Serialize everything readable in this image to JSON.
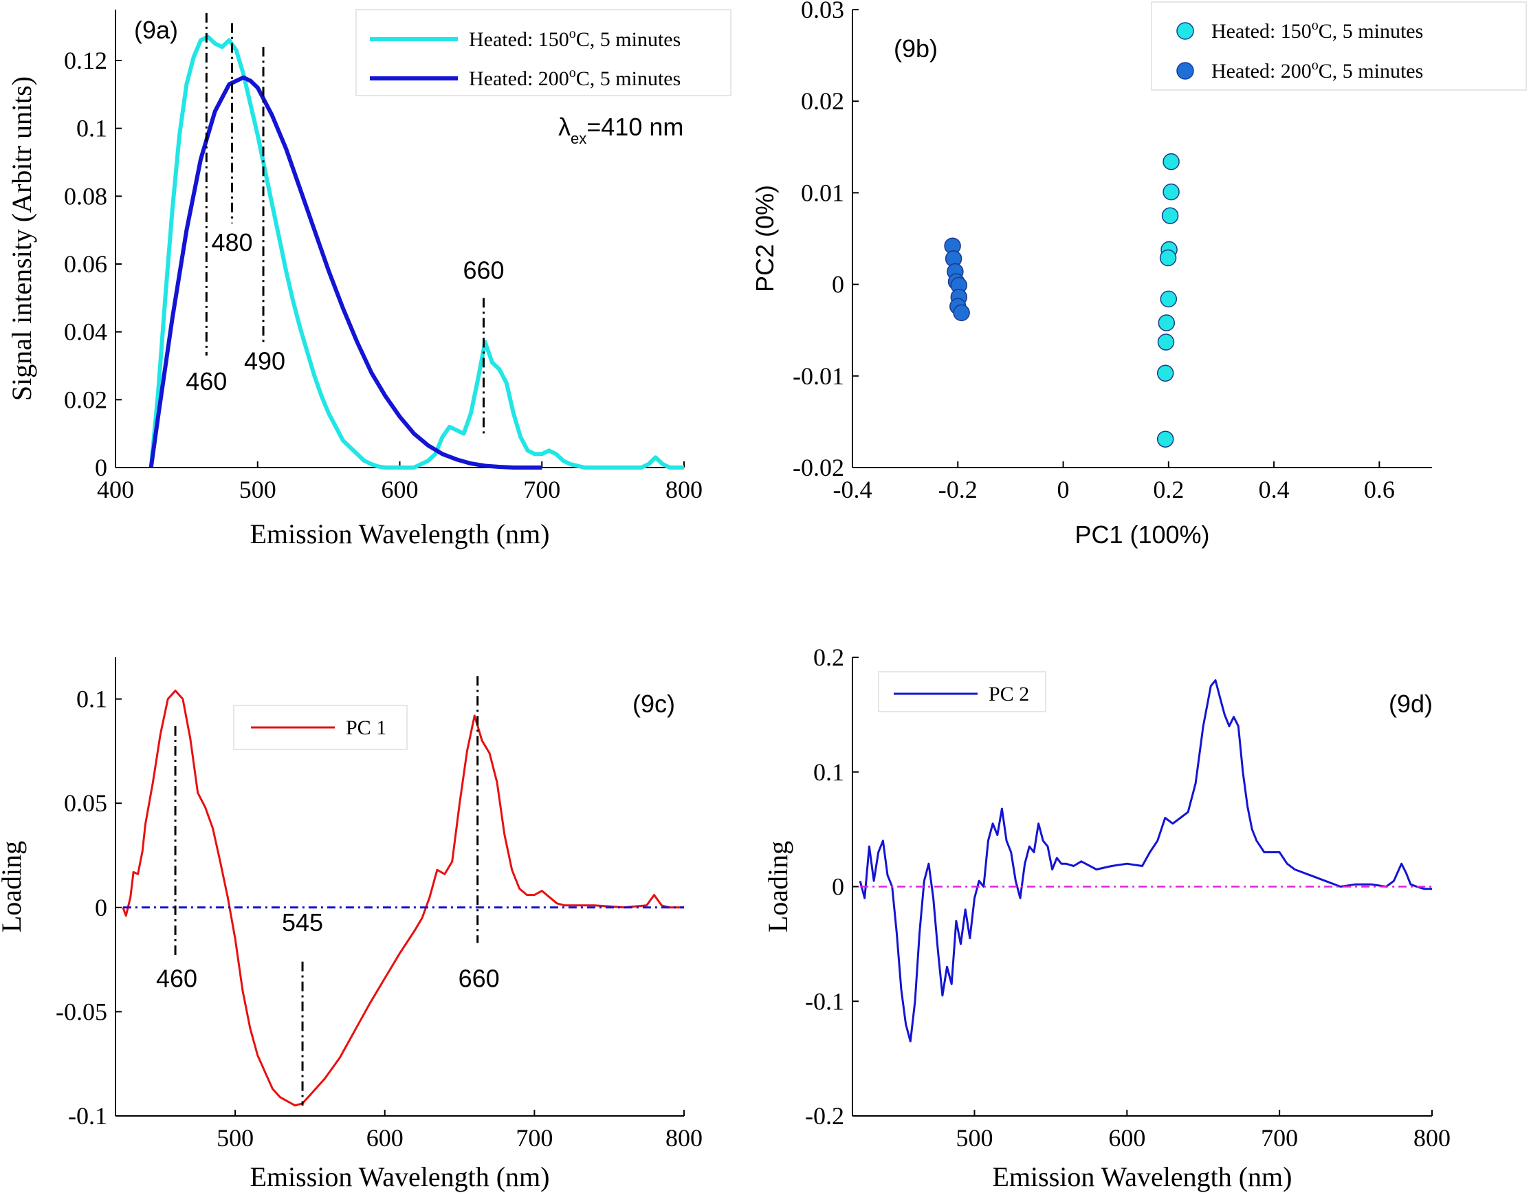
{
  "chart_data": [
    {
      "id": "9a",
      "type": "line",
      "panel_label": "(9a)",
      "xlabel": "Emission Wavelength (nm)",
      "ylabel": "Signal intensity (Arbitr units)",
      "xlim": [
        400,
        800
      ],
      "ylim": [
        0,
        0.135
      ],
      "xticks": [
        400,
        500,
        600,
        700,
        800
      ],
      "xtick_labels": [
        "400",
        "500",
        "600",
        "700",
        "800"
      ],
      "yticks": [
        0,
        0.02,
        0.04,
        0.06,
        0.08,
        0.1,
        0.12
      ],
      "ytick_labels": [
        "0",
        "0.02",
        "0.04",
        "0.06",
        "0.08",
        "0.1",
        "0.12"
      ],
      "legend_position": "top-right",
      "excitation_note": {
        "prefix": "λ",
        "subscript": "ex",
        "suffix": "=410 nm"
      },
      "series": [
        {
          "name": "Heated: 150°C, 5 minutes",
          "legend_parts": [
            "Heated: 150",
            "o",
            "C, 5 minutes"
          ],
          "color": "#22e5e5",
          "x": [
            425,
            430,
            435,
            440,
            445,
            450,
            455,
            460,
            465,
            470,
            475,
            480,
            485,
            490,
            495,
            500,
            505,
            510,
            515,
            520,
            525,
            530,
            535,
            540,
            545,
            550,
            555,
            560,
            565,
            570,
            575,
            580,
            585,
            590,
            595,
            600,
            605,
            610,
            615,
            620,
            625,
            630,
            635,
            640,
            645,
            650,
            655,
            660,
            665,
            670,
            675,
            680,
            685,
            690,
            695,
            700,
            705,
            710,
            715,
            720,
            730,
            740,
            750,
            760,
            770,
            775,
            780,
            785,
            790,
            800
          ],
          "y": [
            0,
            0.022,
            0.05,
            0.076,
            0.098,
            0.113,
            0.121,
            0.126,
            0.127,
            0.125,
            0.124,
            0.126,
            0.123,
            0.116,
            0.107,
            0.098,
            0.088,
            0.078,
            0.068,
            0.058,
            0.049,
            0.041,
            0.034,
            0.027,
            0.021,
            0.016,
            0.012,
            0.008,
            0.006,
            0.004,
            0.002,
            0.001,
            0.0003,
            0,
            0,
            0,
            0,
            0,
            0.001,
            0.002,
            0.004,
            0.009,
            0.012,
            0.011,
            0.01,
            0.016,
            0.026,
            0.037,
            0.031,
            0.029,
            0.025,
            0.016,
            0.009,
            0.005,
            0.004,
            0.004,
            0.005,
            0.004,
            0.002,
            0.001,
            0,
            0,
            0,
            0,
            0,
            0.001,
            0.003,
            0.001,
            0,
            0
          ]
        },
        {
          "name": "Heated: 200°C, 5 minutes",
          "legend_parts": [
            "Heated: 200",
            "o",
            "C, 5 minutes"
          ],
          "color": "#1414d4",
          "x": [
            425,
            430,
            440,
            450,
            460,
            470,
            480,
            490,
            495,
            500,
            510,
            520,
            530,
            540,
            550,
            560,
            570,
            580,
            590,
            600,
            610,
            620,
            630,
            640,
            650,
            660,
            670,
            680,
            700
          ],
          "y": [
            0,
            0.015,
            0.044,
            0.07,
            0.091,
            0.105,
            0.113,
            0.115,
            0.114,
            0.112,
            0.104,
            0.094,
            0.082,
            0.07,
            0.058,
            0.047,
            0.037,
            0.028,
            0.021,
            0.015,
            0.01,
            0.0065,
            0.004,
            0.0024,
            0.0012,
            0.0005,
            0.0002,
            0,
            0
          ]
        }
      ],
      "annotations": [
        {
          "label": "460",
          "x": 464,
          "y_top": 0.134,
          "y_bottom": 0.033
        },
        {
          "label": "480",
          "x": 482,
          "y_top": 0.131,
          "y_bottom": 0.072
        },
        {
          "label": "490",
          "x": 504,
          "y_top": 0.124,
          "y_bottom": 0.037
        },
        {
          "label": "660",
          "x": 659,
          "y_top": 0.05,
          "y_bottom": 0.009
        }
      ]
    },
    {
      "id": "9b",
      "type": "scatter",
      "panel_label": "(9b)",
      "xlabel": "PC1 (100%)",
      "ylabel": "PC2 (0%)",
      "xlim": [
        -0.4,
        0.7
      ],
      "ylim": [
        -0.02,
        0.03
      ],
      "xticks": [
        -0.4,
        -0.2,
        0,
        0.2,
        0.4,
        0.6
      ],
      "xtick_labels": [
        "-0.4",
        "-0.2",
        "0",
        "0.2",
        "0.4",
        "0.6"
      ],
      "yticks": [
        -0.02,
        -0.01,
        0,
        0.01,
        0.02,
        0.03
      ],
      "ytick_labels": [
        "-0.02",
        "-0.01",
        "0",
        "0.01",
        "0.02",
        "0.03"
      ],
      "legend_position": "top-right",
      "series": [
        {
          "name": "Heated: 150°C, 5 minutes",
          "legend_parts": [
            "Heated: 150",
            "o",
            "C, 5 minutes"
          ],
          "color": "#22e5e5",
          "points": [
            [
              0.205,
              0.0134
            ],
            [
              0.205,
              0.0101
            ],
            [
              0.203,
              0.0075
            ],
            [
              0.201,
              0.0038
            ],
            [
              0.199,
              0.0029
            ],
            [
              0.2,
              -0.0016
            ],
            [
              0.196,
              -0.0042
            ],
            [
              0.195,
              -0.0063
            ],
            [
              0.194,
              -0.0097
            ],
            [
              0.194,
              -0.0169
            ]
          ]
        },
        {
          "name": "Heated: 200°C, 5 minutes",
          "legend_parts": [
            "Heated: 200",
            "o",
            "C, 5 minutes"
          ],
          "color": "#1f6fd6",
          "points": [
            [
              -0.21,
              0.0042
            ],
            [
              -0.208,
              0.0028
            ],
            [
              -0.205,
              0.0014
            ],
            [
              -0.203,
              0.0003
            ],
            [
              -0.198,
              -0.0001
            ],
            [
              -0.198,
              -0.0014
            ],
            [
              -0.2,
              -0.0024
            ],
            [
              -0.193,
              -0.0031
            ]
          ]
        }
      ]
    },
    {
      "id": "9c",
      "type": "line",
      "panel_label": "(9c)",
      "xlabel": "Emission Wavelength (nm)",
      "ylabel": "Loading",
      "xlim": [
        420,
        800
      ],
      "ylim": [
        -0.1,
        0.12
      ],
      "xticks": [
        500,
        600,
        700,
        800
      ],
      "xtick_labels": [
        "500",
        "600",
        "700",
        "800"
      ],
      "yticks": [
        -0.1,
        -0.05,
        0,
        0.05,
        0.1
      ],
      "ytick_labels": [
        "-0.1",
        "-0.05",
        "0",
        "0.05",
        "0.1"
      ],
      "legend_position": "top-center",
      "series": [
        {
          "name": "PC 1",
          "color": "#e81010",
          "x": [
            425,
            427,
            430,
            432,
            435,
            438,
            440,
            445,
            450,
            455,
            460,
            465,
            470,
            475,
            480,
            485,
            490,
            495,
            500,
            505,
            510,
            515,
            520,
            525,
            530,
            535,
            540,
            545,
            550,
            555,
            560,
            570,
            580,
            590,
            600,
            610,
            620,
            625,
            630,
            635,
            640,
            645,
            650,
            655,
            660,
            665,
            670,
            675,
            680,
            685,
            690,
            695,
            700,
            705,
            710,
            715,
            720,
            730,
            740,
            760,
            775,
            780,
            785,
            790,
            800
          ],
          "y": [
            0,
            -0.004,
            0.005,
            0.017,
            0.016,
            0.027,
            0.04,
            0.06,
            0.083,
            0.1,
            0.104,
            0.1,
            0.081,
            0.055,
            0.048,
            0.038,
            0.022,
            0.005,
            -0.015,
            -0.04,
            -0.058,
            -0.071,
            -0.079,
            -0.087,
            -0.091,
            -0.093,
            -0.095,
            -0.094,
            -0.09,
            -0.086,
            -0.082,
            -0.072,
            -0.059,
            -0.046,
            -0.034,
            -0.022,
            -0.011,
            -0.005,
            0.005,
            0.018,
            0.016,
            0.022,
            0.05,
            0.075,
            0.092,
            0.08,
            0.074,
            0.06,
            0.035,
            0.018,
            0.009,
            0.006,
            0.006,
            0.008,
            0.005,
            0.002,
            0.001,
            0.001,
            0.001,
            0,
            0.001,
            0.006,
            0.001,
            0,
            0
          ]
        },
        {
          "name": "",
          "color": "#1414d4",
          "style": "dashdot",
          "x": [
            425,
            800
          ],
          "y": [
            0,
            0
          ]
        }
      ],
      "annotations": [
        {
          "label": "460",
          "x": 460,
          "y_top": 0.087,
          "y_bottom": -0.024
        },
        {
          "label": "545",
          "x": 545,
          "y_top": -0.026,
          "y_bottom": -0.095
        },
        {
          "label": "660",
          "x": 662,
          "y_top": 0.111,
          "y_bottom": -0.017
        }
      ]
    },
    {
      "id": "9d",
      "type": "line",
      "panel_label": "(9d)",
      "xlabel": "Emission Wavelength (nm)",
      "ylabel": "Loading",
      "xlim": [
        420,
        800
      ],
      "ylim": [
        -0.2,
        0.2
      ],
      "xticks": [
        500,
        600,
        700,
        800
      ],
      "xtick_labels": [
        "500",
        "600",
        "700",
        "800"
      ],
      "yticks": [
        -0.2,
        -0.1,
        0,
        0.1,
        0.2
      ],
      "ytick_labels": [
        "-0.2",
        "-0.1",
        "0",
        "0.1",
        "0.2"
      ],
      "legend_position": "top-left",
      "series": [
        {
          "name": "PC 2",
          "color": "#1414d4",
          "x": [
            425,
            428,
            431,
            434,
            437,
            440,
            443,
            446,
            449,
            452,
            455,
            458,
            461,
            464,
            467,
            470,
            473,
            476,
            479,
            482,
            485,
            488,
            491,
            494,
            497,
            500,
            503,
            506,
            509,
            512,
            515,
            518,
            521,
            524,
            527,
            530,
            533,
            536,
            539,
            542,
            545,
            548,
            551,
            554,
            557,
            560,
            565,
            570,
            580,
            590,
            600,
            610,
            615,
            620,
            625,
            630,
            635,
            640,
            645,
            650,
            655,
            658,
            661,
            664,
            667,
            670,
            673,
            676,
            679,
            682,
            685,
            690,
            695,
            700,
            705,
            710,
            720,
            730,
            740,
            750,
            760,
            770,
            775,
            780,
            783,
            786,
            790,
            795,
            800
          ],
          "y": [
            0.005,
            -0.01,
            0.035,
            0.005,
            0.03,
            0.04,
            0.01,
            0.0,
            -0.04,
            -0.09,
            -0.12,
            -0.135,
            -0.1,
            -0.04,
            0.005,
            0.02,
            -0.01,
            -0.055,
            -0.095,
            -0.07,
            -0.085,
            -0.03,
            -0.05,
            -0.02,
            -0.045,
            -0.01,
            0.005,
            0.0,
            0.04,
            0.055,
            0.045,
            0.068,
            0.04,
            0.03,
            0.005,
            -0.01,
            0.02,
            0.035,
            0.03,
            0.055,
            0.04,
            0.035,
            0.015,
            0.025,
            0.02,
            0.02,
            0.018,
            0.022,
            0.015,
            0.018,
            0.02,
            0.018,
            0.03,
            0.04,
            0.06,
            0.055,
            0.06,
            0.065,
            0.09,
            0.14,
            0.175,
            0.18,
            0.165,
            0.15,
            0.14,
            0.148,
            0.14,
            0.1,
            0.07,
            0.05,
            0.04,
            0.03,
            0.03,
            0.03,
            0.02,
            0.015,
            0.01,
            0.005,
            0.0,
            0.002,
            0.002,
            0.0,
            0.005,
            0.02,
            0.012,
            0.002,
            0.0,
            -0.002,
            -0.002
          ]
        },
        {
          "name": "",
          "color": "#e020e0",
          "style": "dashdot",
          "x": [
            425,
            800
          ],
          "y": [
            0,
            0
          ]
        }
      ]
    }
  ]
}
